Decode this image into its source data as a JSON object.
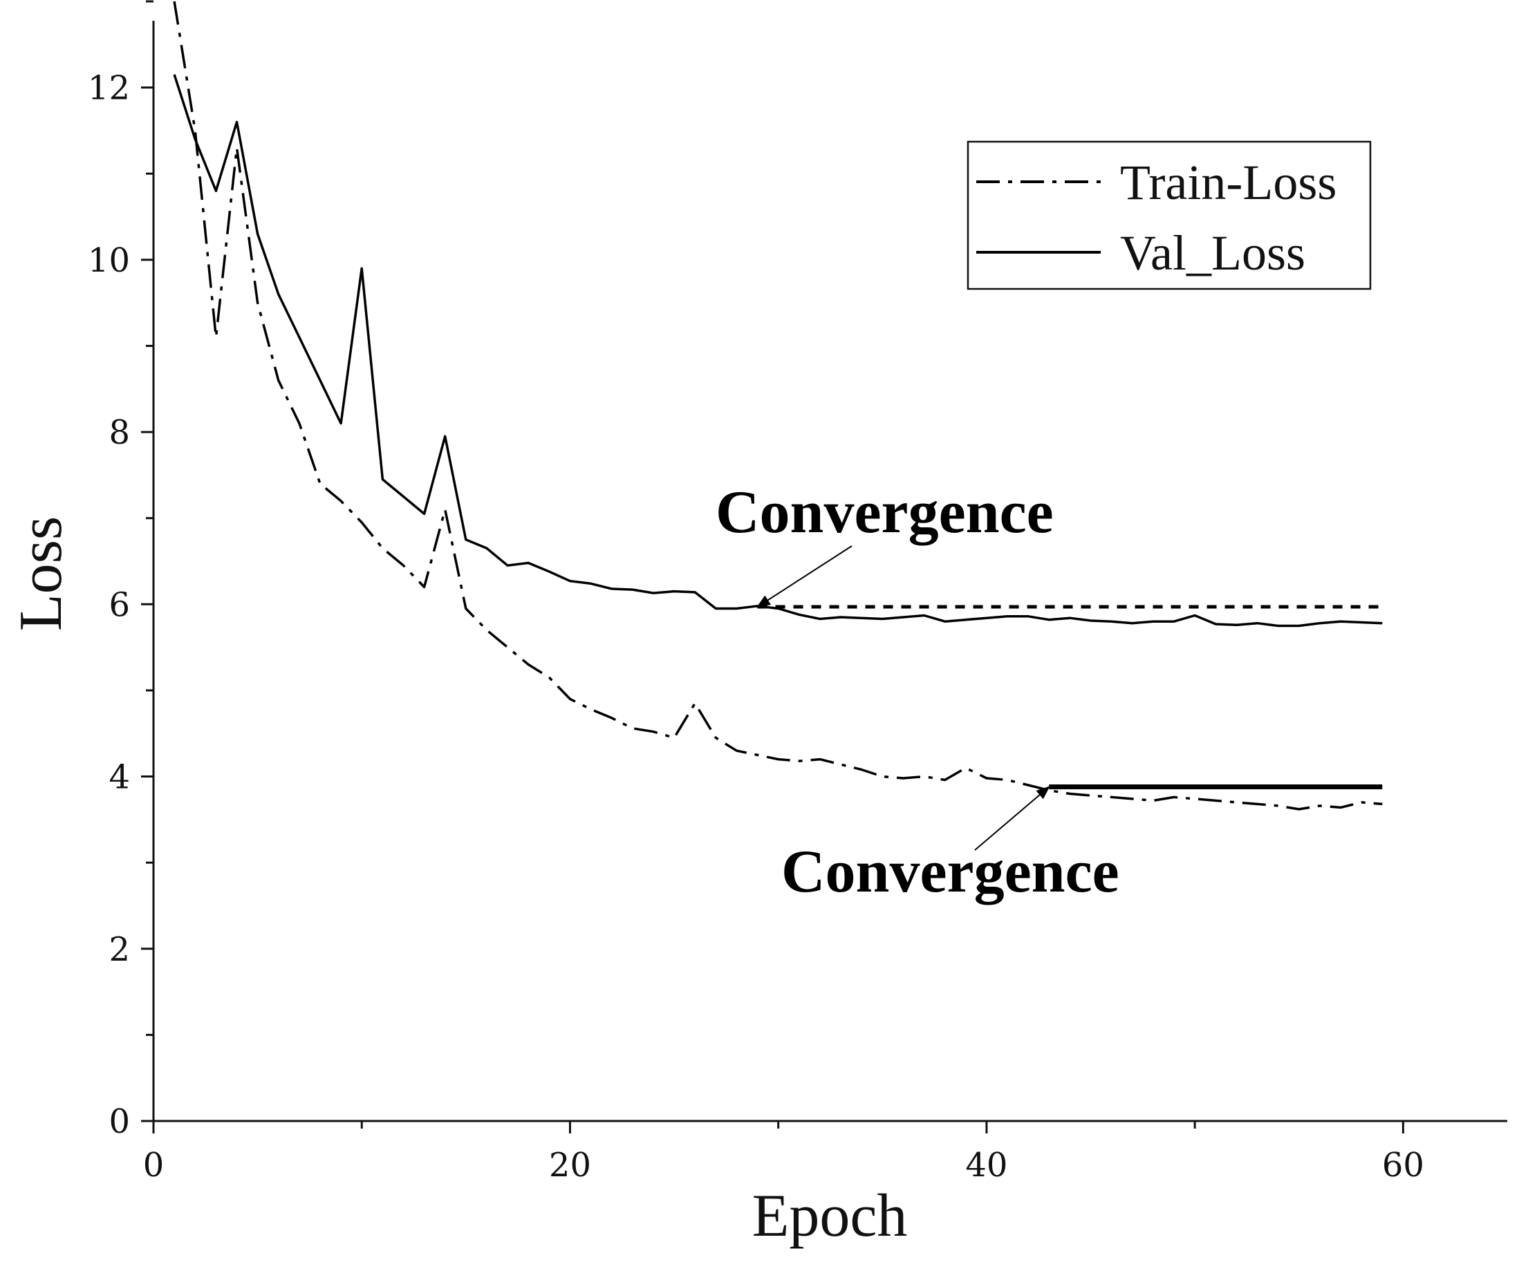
{
  "chart_data": {
    "type": "line",
    "title": "",
    "xlabel": "Epoch",
    "ylabel": "Loss",
    "xlim": [
      0,
      65
    ],
    "ylim": [
      0,
      13
    ],
    "x_ticks": [
      0,
      20,
      40,
      60
    ],
    "x_tick_labels": [
      "0",
      "20",
      "40",
      "60"
    ],
    "x_minor_ticks": [
      10,
      30,
      50
    ],
    "y_ticks": [
      0,
      2,
      4,
      6,
      8,
      10,
      12
    ],
    "y_tick_labels": [
      "0",
      "2",
      "4",
      "6",
      "8",
      "10",
      "12"
    ],
    "y_minor_ticks": [
      1,
      3,
      5,
      7,
      9,
      11
    ],
    "legend_position": "top-right",
    "series": [
      {
        "name": "Train-Loss",
        "style": "dash-dot",
        "color": "#000000",
        "x": [
          1,
          2,
          3,
          4,
          5,
          6,
          7,
          8,
          9,
          10,
          11,
          12,
          13,
          14,
          15,
          16,
          17,
          18,
          19,
          20,
          21,
          22,
          23,
          24,
          25,
          26,
          27,
          28,
          29,
          30,
          31,
          32,
          33,
          34,
          35,
          36,
          37,
          38,
          39,
          40,
          41,
          42,
          43,
          44,
          45,
          46,
          47,
          48,
          49,
          50,
          51,
          52,
          53,
          54,
          55,
          56,
          57,
          58,
          59
        ],
        "values": [
          13.0,
          11.5,
          9.1,
          11.3,
          9.5,
          8.6,
          8.1,
          7.4,
          7.2,
          6.95,
          6.65,
          6.45,
          6.2,
          7.1,
          5.95,
          5.7,
          5.5,
          5.3,
          5.15,
          4.9,
          4.78,
          4.68,
          4.56,
          4.52,
          4.45,
          4.85,
          4.45,
          4.3,
          4.25,
          4.2,
          4.18,
          4.2,
          4.14,
          4.08,
          4.0,
          3.98,
          4.0,
          3.96,
          4.1,
          3.98,
          3.96,
          3.9,
          3.84,
          3.8,
          3.78,
          3.76,
          3.74,
          3.72,
          3.76,
          3.74,
          3.72,
          3.7,
          3.68,
          3.66,
          3.62,
          3.66,
          3.64,
          3.7,
          3.68
        ]
      },
      {
        "name": "Val_Loss",
        "style": "solid",
        "color": "#000000",
        "x": [
          1,
          2,
          3,
          4,
          5,
          6,
          7,
          8,
          9,
          10,
          11,
          12,
          13,
          14,
          15,
          16,
          17,
          18,
          19,
          20,
          21,
          22,
          23,
          24,
          25,
          26,
          27,
          28,
          29,
          30,
          31,
          32,
          33,
          34,
          35,
          36,
          37,
          38,
          39,
          40,
          41,
          42,
          43,
          44,
          45,
          46,
          47,
          48,
          49,
          50,
          51,
          52,
          53,
          54,
          55,
          56,
          57,
          58,
          59
        ],
        "values": [
          12.15,
          11.4,
          10.8,
          11.6,
          10.3,
          9.6,
          9.1,
          8.6,
          8.1,
          9.9,
          7.45,
          7.25,
          7.05,
          7.95,
          6.75,
          6.65,
          6.45,
          6.48,
          6.38,
          6.27,
          6.24,
          6.18,
          6.17,
          6.13,
          6.15,
          6.14,
          5.95,
          5.95,
          5.98,
          5.95,
          5.88,
          5.83,
          5.85,
          5.84,
          5.83,
          5.85,
          5.87,
          5.8,
          5.82,
          5.84,
          5.86,
          5.86,
          5.82,
          5.84,
          5.81,
          5.8,
          5.78,
          5.8,
          5.8,
          5.87,
          5.77,
          5.76,
          5.78,
          5.75,
          5.75,
          5.78,
          5.8,
          5.79,
          5.78
        ]
      }
    ],
    "reference_lines": [
      {
        "name": "val-convergence-level",
        "style": "dotted",
        "y": 5.97,
        "x_start": 29,
        "x_end": 59
      },
      {
        "name": "train-convergence-level",
        "style": "solid-thick",
        "y": 3.88,
        "x_start": 43,
        "x_end": 59
      }
    ],
    "annotations": [
      {
        "text": "Convergence",
        "target": [
          29,
          5.97
        ],
        "label_anchor": "above"
      },
      {
        "text": "Convergence",
        "target": [
          43,
          3.88
        ],
        "label_anchor": "below"
      }
    ]
  }
}
